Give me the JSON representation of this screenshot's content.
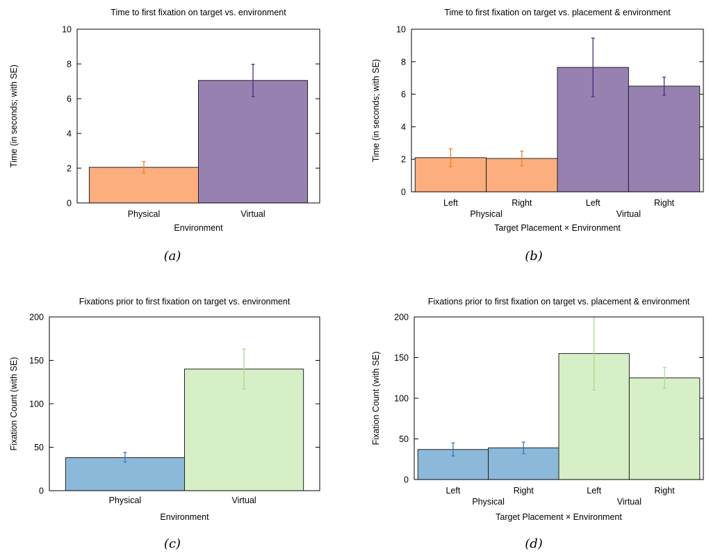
{
  "colors": {
    "physical_orange": "#FDAE7E",
    "virtual_purple": "#9781B1",
    "physical_blue": "#8CB9D9",
    "virtual_green": "#D7EFC6",
    "err_orange": "#F07F24",
    "err_purple": "#4B2A7B",
    "err_blue": "#2E78C6",
    "err_green": "#A8DB90"
  },
  "chart_data": [
    {
      "type": "bar",
      "title": "Time to first fixation on target vs. environment",
      "xlabel": "Environment",
      "ylabel": "Time (in seconds; with SE)",
      "ylim": [
        0,
        10
      ],
      "yticks": [
        0,
        2,
        4,
        6,
        8,
        10
      ],
      "categories": [
        "Physical",
        "Virtual"
      ],
      "group_labels": [],
      "values": [
        2.05,
        7.05
      ],
      "error_low": [
        1.72,
        6.12
      ],
      "error_high": [
        2.38,
        7.98
      ],
      "fill_colors": [
        "#FDAE7E",
        "#9781B1"
      ],
      "error_colors": [
        "#F07F24",
        "#4B2A7B"
      ],
      "caption": "(a)"
    },
    {
      "type": "bar",
      "title": "Time to first fixation on target vs. placement & environment",
      "xlabel": "Target Placement × Environment",
      "ylabel": "Time (in seconds; with SE)",
      "ylim": [
        0,
        10
      ],
      "yticks": [
        0,
        2,
        4,
        6,
        8,
        10
      ],
      "categories": [
        "Left",
        "Right",
        "Left",
        "Right"
      ],
      "group_labels": [
        "Physical",
        "Virtual"
      ],
      "values": [
        2.1,
        2.05,
        7.65,
        6.5
      ],
      "error_low": [
        1.55,
        1.6,
        5.85,
        5.95
      ],
      "error_high": [
        2.65,
        2.5,
        9.45,
        7.05
      ],
      "fill_colors": [
        "#FDAE7E",
        "#FDAE7E",
        "#9781B1",
        "#9781B1"
      ],
      "error_colors": [
        "#F07F24",
        "#F07F24",
        "#4B2A7B",
        "#4B2A7B"
      ],
      "caption": "(b)"
    },
    {
      "type": "bar",
      "title": "Fixations prior to first fixation on target vs. environment",
      "xlabel": "Environment",
      "ylabel": "Fixation Count (with SE)",
      "ylim": [
        0,
        200
      ],
      "yticks": [
        0,
        50,
        100,
        150,
        200
      ],
      "categories": [
        "Physical",
        "Virtual"
      ],
      "group_labels": [],
      "values": [
        38,
        140
      ],
      "error_low": [
        33,
        117
      ],
      "error_high": [
        44,
        163
      ],
      "fill_colors": [
        "#8CB9D9",
        "#D7EFC6"
      ],
      "error_colors": [
        "#2E78C6",
        "#A8DB90"
      ],
      "caption": "(c)"
    },
    {
      "type": "bar",
      "title": "Fixations prior to first fixation on target vs. placement & environment",
      "xlabel": "Target Placement × Environment",
      "ylabel": "Fixation Count (with SE)",
      "ylim": [
        0,
        200
      ],
      "yticks": [
        0,
        50,
        100,
        150,
        200
      ],
      "categories": [
        "Left",
        "Right",
        "Left",
        "Right"
      ],
      "group_labels": [
        "Physical",
        "Virtual"
      ],
      "values": [
        37,
        39,
        155,
        125
      ],
      "error_low": [
        29,
        32,
        110,
        112
      ],
      "error_high": [
        45,
        46,
        200,
        138
      ],
      "fill_colors": [
        "#8CB9D9",
        "#8CB9D9",
        "#D7EFC6",
        "#D7EFC6"
      ],
      "error_colors": [
        "#2E78C6",
        "#2E78C6",
        "#A8DB90",
        "#A8DB90"
      ],
      "caption": "(d)"
    }
  ]
}
